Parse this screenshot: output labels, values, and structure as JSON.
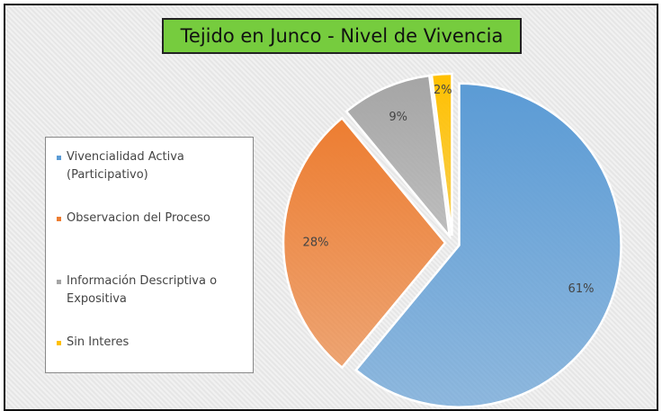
{
  "chart_data": {
    "type": "pie",
    "title": "Tejido en Junco - Nivel de Vivencia",
    "categories": [
      "Vivencialidad Activa (Participativo)",
      "Observacion del Proceso",
      "Información Descriptiva o Expositiva",
      "Sin Interes"
    ],
    "values": [
      61,
      28,
      9,
      2
    ],
    "value_labels": [
      "61%",
      "28%",
      "9%",
      "2%"
    ],
    "colors": [
      "#5b9bd5",
      "#ed7d31",
      "#a5a5a5",
      "#ffc000"
    ],
    "legend": "left"
  }
}
